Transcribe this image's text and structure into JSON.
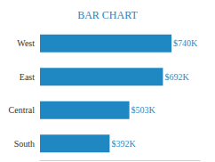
{
  "chart_data": {
    "type": "bar",
    "title": "BAR CHART",
    "orientation": "horizontal",
    "categories": [
      "West",
      "East",
      "Central",
      "South"
    ],
    "values": [
      740000,
      692000,
      503000,
      392000
    ],
    "value_labels": [
      "$740K",
      "$692K",
      "$503K",
      "$392K"
    ],
    "color": "#1f88c2",
    "xlim": [
      0,
      900000
    ],
    "data_labels": true,
    "tick_labels": "y",
    "grid": false
  }
}
